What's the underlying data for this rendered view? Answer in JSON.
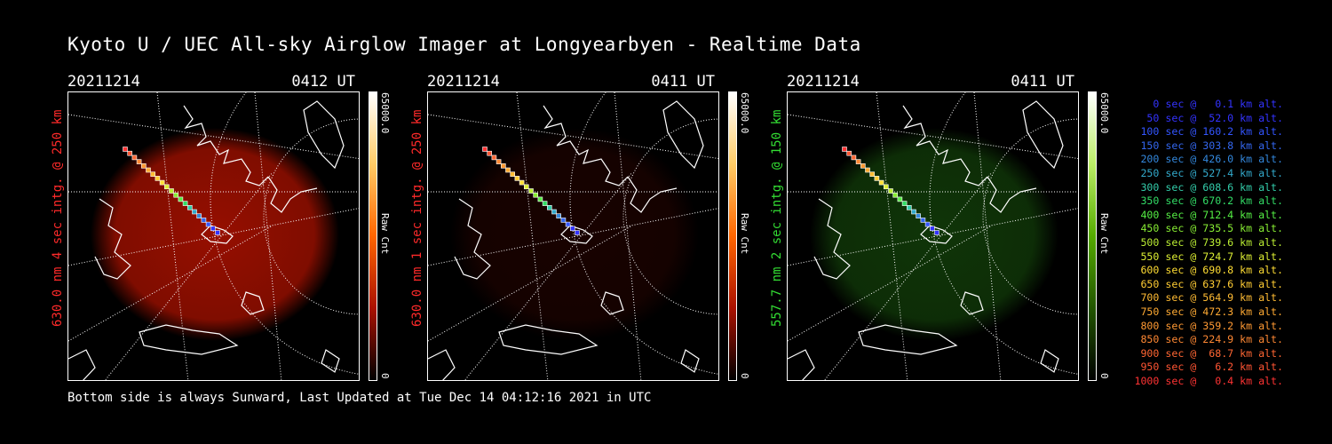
{
  "title": "Kyoto U / UEC All-sky Airglow Imager at Longyearbyen - Realtime Data",
  "footer": "Bottom side is always Sunward, Last Updated at Tue Dec 14 04:12:16 2021 in UTC",
  "panels": [
    {
      "date": "20211214",
      "time": "0412 UT",
      "side_label": "630.0 nm 4 sec intg. @ 250 km",
      "label_color": "#ff2a2a",
      "cbar_max": "65000.0",
      "cbar_min": "0",
      "cbar_unit": "Raw Cnt",
      "emission_color": "#c81400",
      "emission_level": 0.75
    },
    {
      "date": "20211214",
      "time": "0411 UT",
      "side_label": "630.0 nm 1 sec intg. @ 250 km",
      "label_color": "#ff2a2a",
      "cbar_max": "65000.0",
      "cbar_min": "0",
      "cbar_unit": "Raw Cnt",
      "emission_color": "#7a0a00",
      "emission_level": 0.2
    },
    {
      "date": "20211214",
      "time": "0411 UT",
      "side_label": "557.7 nm 2 sec intg. @ 150 km",
      "label_color": "#33dd33",
      "cbar_max": "65000.0",
      "cbar_min": "0",
      "cbar_unit": "Raw Cnt",
      "emission_color": "#1f6a10",
      "emission_level": 0.5
    }
  ],
  "legend": [
    {
      "text": "   0 sec @   0.1 km alt.",
      "color": "#3333ff"
    },
    {
      "text": "  50 sec @  52.0 km alt.",
      "color": "#3333ff"
    },
    {
      "text": " 100 sec @ 160.2 km alt.",
      "color": "#3355ff"
    },
    {
      "text": " 150 sec @ 303.8 km alt.",
      "color": "#3366ee"
    },
    {
      "text": " 200 sec @ 426.0 km alt.",
      "color": "#3388dd"
    },
    {
      "text": " 250 sec @ 527.4 km alt.",
      "color": "#33aacc"
    },
    {
      "text": " 300 sec @ 608.6 km alt.",
      "color": "#33ccaa"
    },
    {
      "text": " 350 sec @ 670.2 km alt.",
      "color": "#33dd66"
    },
    {
      "text": " 400 sec @ 712.4 km alt.",
      "color": "#55ee44"
    },
    {
      "text": " 450 sec @ 735.5 km alt.",
      "color": "#88ee33"
    },
    {
      "text": " 500 sec @ 739.6 km alt.",
      "color": "#bbee33"
    },
    {
      "text": " 550 sec @ 724.7 km alt.",
      "color": "#ddee33"
    },
    {
      "text": " 600 sec @ 690.8 km alt.",
      "color": "#ffdd33"
    },
    {
      "text": " 650 sec @ 637.6 km alt.",
      "color": "#ffcc33"
    },
    {
      "text": " 700 sec @ 564.9 km alt.",
      "color": "#ffbb33"
    },
    {
      "text": " 750 sec @ 472.3 km alt.",
      "color": "#ffaa33"
    },
    {
      "text": " 800 sec @ 359.2 km alt.",
      "color": "#ff9933"
    },
    {
      "text": " 850 sec @ 224.9 km alt.",
      "color": "#ff8833"
    },
    {
      "text": " 900 sec @  68.7 km alt.",
      "color": "#ff6633"
    },
    {
      "text": " 950 sec @   6.2 km alt.",
      "color": "#ff5533"
    },
    {
      "text": "1000 sec @   0.4 km alt.",
      "color": "#ff3333"
    }
  ]
}
